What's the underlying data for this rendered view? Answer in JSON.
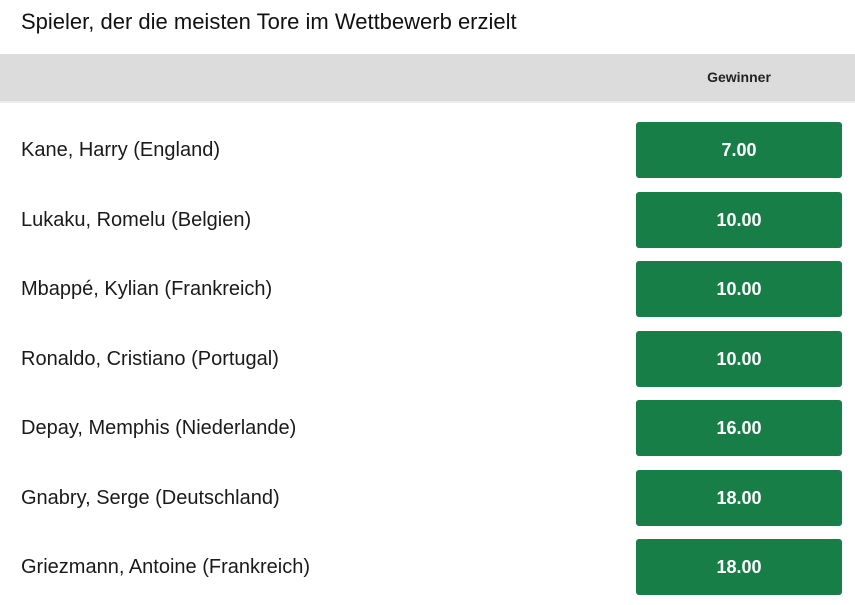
{
  "market": {
    "title": "Spieler, der die meisten Tore im Wettbewerb erzielt",
    "column_header": "Gewinner"
  },
  "colors": {
    "odds_button": "#187e47",
    "header_bar": "#dcdcdc"
  },
  "selections": [
    {
      "name": "Kane, Harry (England)",
      "odds": "7.00"
    },
    {
      "name": "Lukaku, Romelu (Belgien)",
      "odds": "10.00"
    },
    {
      "name": "Mbappé, Kylian (Frankreich)",
      "odds": "10.00"
    },
    {
      "name": "Ronaldo, Cristiano (Portugal)",
      "odds": "10.00"
    },
    {
      "name": "Depay, Memphis (Niederlande)",
      "odds": "16.00"
    },
    {
      "name": "Gnabry, Serge (Deutschland)",
      "odds": "18.00"
    },
    {
      "name": "Griezmann, Antoine (Frankreich)",
      "odds": "18.00"
    }
  ]
}
